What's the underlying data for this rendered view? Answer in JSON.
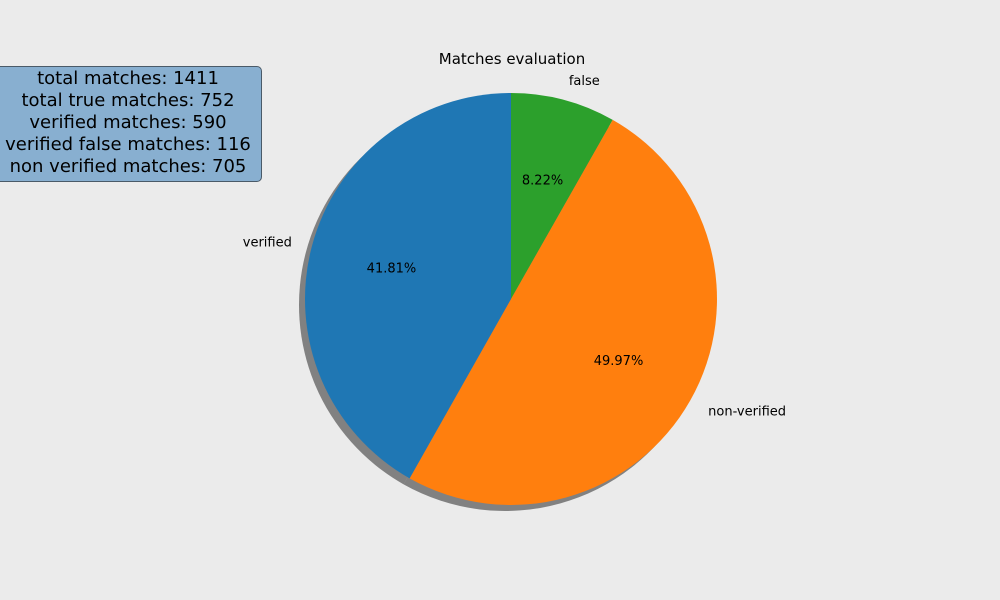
{
  "chart_data": {
    "type": "pie",
    "title": "Matches evaluation",
    "slices": [
      {
        "label": "false",
        "value": 8.22,
        "pct_label": "8.22%",
        "color": "#2ca02c"
      },
      {
        "label": "non-verified",
        "value": 49.97,
        "pct_label": "49.97%",
        "color": "#ff7f0e"
      },
      {
        "label": "verified",
        "value": 41.81,
        "pct_label": "41.81%",
        "color": "#1f77b4"
      }
    ],
    "start_angle_deg": 90,
    "direction": "clockwise",
    "shadow": true
  },
  "stats_box": {
    "lines": [
      "total matches: 1411",
      "total true matches: 752",
      "verified matches: 590",
      "verified false matches: 116",
      "non verified matches: 705"
    ],
    "background": "#88afd0"
  },
  "background": "#ebebeb"
}
